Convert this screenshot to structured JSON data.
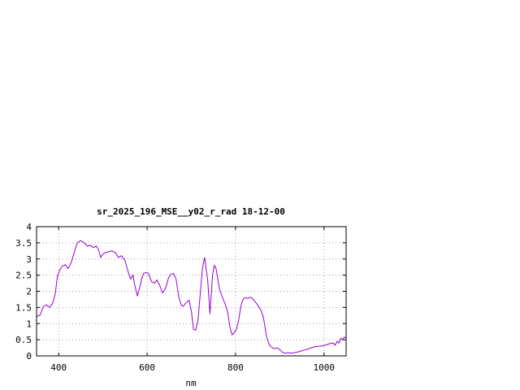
{
  "chart_data": {
    "type": "line",
    "title": "sr_2025_196_MSE__y02_r_rad 18-12-00",
    "xlabel": "nm",
    "ylabel": "",
    "xlim": [
      350,
      1050
    ],
    "ylim": [
      0,
      4
    ],
    "x_ticks": [
      400,
      600,
      800,
      1000
    ],
    "y_ticks": [
      0,
      0.5,
      1,
      1.5,
      2,
      2.5,
      3,
      3.5,
      4
    ],
    "y_tick_labels": [
      "0",
      "0.5",
      "1",
      "1.5",
      "2",
      "2.5",
      "3",
      "3.5",
      "4"
    ],
    "grid": true,
    "series": [
      {
        "color": "#9400d3",
        "x": [
          350,
          358,
          365,
          372,
          380,
          386,
          392,
          397,
          402,
          408,
          415,
          421,
          428,
          435,
          442,
          450,
          458,
          465,
          472,
          478,
          485,
          490,
          495,
          500,
          505,
          512,
          520,
          528,
          535,
          542,
          550,
          557,
          563,
          568,
          572,
          578,
          583,
          588,
          592,
          597,
          603,
          610,
          617,
          622,
          628,
          635,
          642,
          648,
          653,
          660,
          665,
          672,
          678,
          683,
          688,
          695,
          700,
          705,
          710,
          715,
          720,
          725,
          730,
          737,
          742,
          748,
          752,
          756,
          760,
          764,
          768,
          772,
          776,
          782,
          787,
          792,
          797,
          802,
          807,
          812,
          817,
          822,
          828,
          833,
          838,
          843,
          850,
          857,
          863,
          870,
          877,
          884,
          888,
          893,
          898,
          905,
          912,
          918,
          925,
          932,
          940,
          948,
          955,
          962,
          970,
          978,
          985,
          992,
          1000,
          1007,
          1013,
          1020,
          1025,
          1030,
          1034,
          1038,
          1042,
          1046,
          1050
        ],
        "y": [
          1.22,
          1.26,
          1.52,
          1.58,
          1.5,
          1.62,
          1.9,
          2.45,
          2.65,
          2.78,
          2.82,
          2.7,
          2.88,
          3.2,
          3.5,
          3.57,
          3.5,
          3.4,
          3.42,
          3.35,
          3.4,
          3.3,
          3.05,
          3.15,
          3.2,
          3.22,
          3.25,
          3.2,
          3.05,
          3.1,
          2.95,
          2.6,
          2.38,
          2.5,
          2.2,
          1.85,
          2.1,
          2.4,
          2.55,
          2.58,
          2.55,
          2.3,
          2.25,
          2.35,
          2.2,
          1.95,
          2.1,
          2.4,
          2.52,
          2.55,
          2.4,
          1.8,
          1.55,
          1.55,
          1.65,
          1.72,
          1.4,
          0.82,
          0.8,
          1.1,
          1.9,
          2.7,
          3.05,
          2.35,
          1.3,
          2.5,
          2.8,
          2.7,
          2.35,
          2.05,
          1.9,
          1.75,
          1.62,
          1.38,
          0.9,
          0.65,
          0.72,
          0.82,
          1.1,
          1.55,
          1.75,
          1.8,
          1.78,
          1.82,
          1.78,
          1.7,
          1.58,
          1.42,
          1.2,
          0.6,
          0.32,
          0.25,
          0.22,
          0.25,
          0.22,
          0.12,
          0.08,
          0.1,
          0.08,
          0.1,
          0.12,
          0.15,
          0.18,
          0.2,
          0.25,
          0.28,
          0.3,
          0.3,
          0.32,
          0.35,
          0.38,
          0.4,
          0.33,
          0.45,
          0.4,
          0.55,
          0.5,
          0.58,
          0.55
        ]
      }
    ]
  }
}
